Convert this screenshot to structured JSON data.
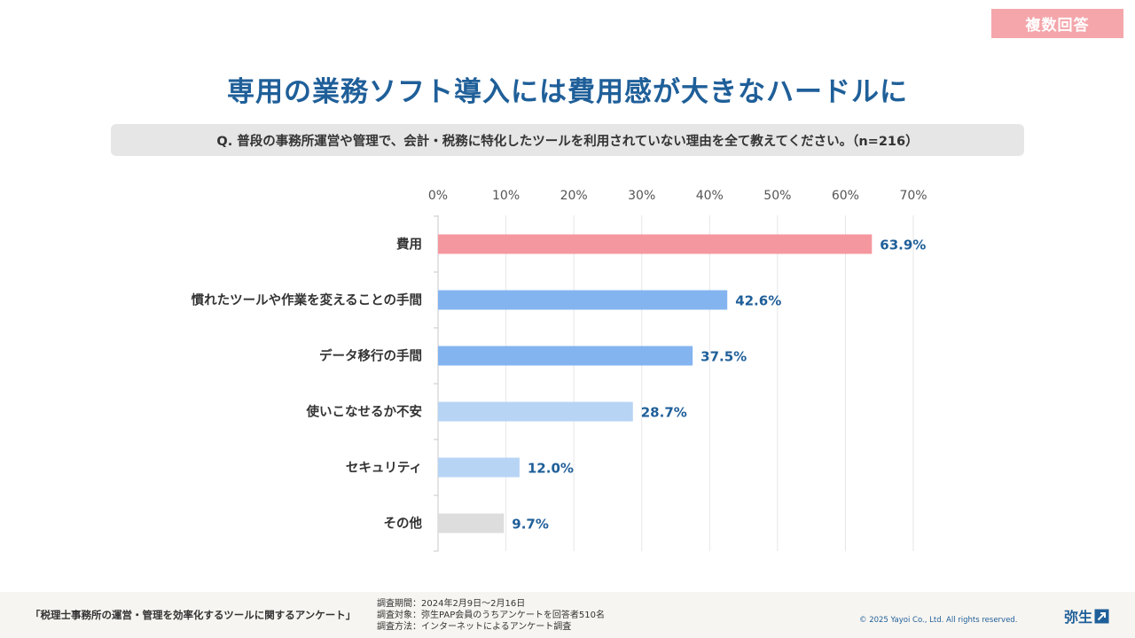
{
  "badge": "複数回答",
  "title": "専用の業務ソフト導入には費用感が大きなハードルに",
  "question": "Q. 普段の事務所運営や管理で、会計・税務に特化したツールを利用されていない理由を全て教えてください。（n=216）",
  "colors": {
    "title": "#1f5f99",
    "label": "#1f5f99",
    "badge": "#f4a6ab"
  },
  "chart_data": {
    "type": "bar",
    "orientation": "horizontal",
    "categories": [
      "費用",
      "慣れたツールや作業を変えることの手間",
      "データ移行の手間",
      "使いこなせるか不安",
      "セキュリティ",
      "その他"
    ],
    "values": [
      63.9,
      42.6,
      37.5,
      28.7,
      12.0,
      9.7
    ],
    "value_labels": [
      "63.9%",
      "42.6%",
      "37.5%",
      "28.7%",
      "12.0%",
      "9.7%"
    ],
    "bar_colors": [
      "#f5979f",
      "#84b4f0",
      "#84b4f0",
      "#b7d4f5",
      "#b7d4f5",
      "#dddddd"
    ],
    "xlim": [
      0,
      70
    ],
    "ticks": [
      0,
      10,
      20,
      30,
      40,
      50,
      60,
      70
    ],
    "tick_labels": [
      "0%",
      "10%",
      "20%",
      "30%",
      "40%",
      "50%",
      "60%",
      "70%"
    ],
    "grid": true,
    "xlabel": "",
    "ylabel": ""
  },
  "footer": {
    "survey_title": "「税理士事務所の運営・管理を効率化するツールに関するアンケート」",
    "period": "調査期間：2024年2月9日〜2月16日",
    "target": "調査対象：弥生PAP会員のうちアンケートを回答者510名",
    "method": "調査方法：インターネットによるアンケート調査",
    "copyright": "© 2025 Yayoi Co., Ltd.  All rights reserved.",
    "logo": "弥生"
  }
}
